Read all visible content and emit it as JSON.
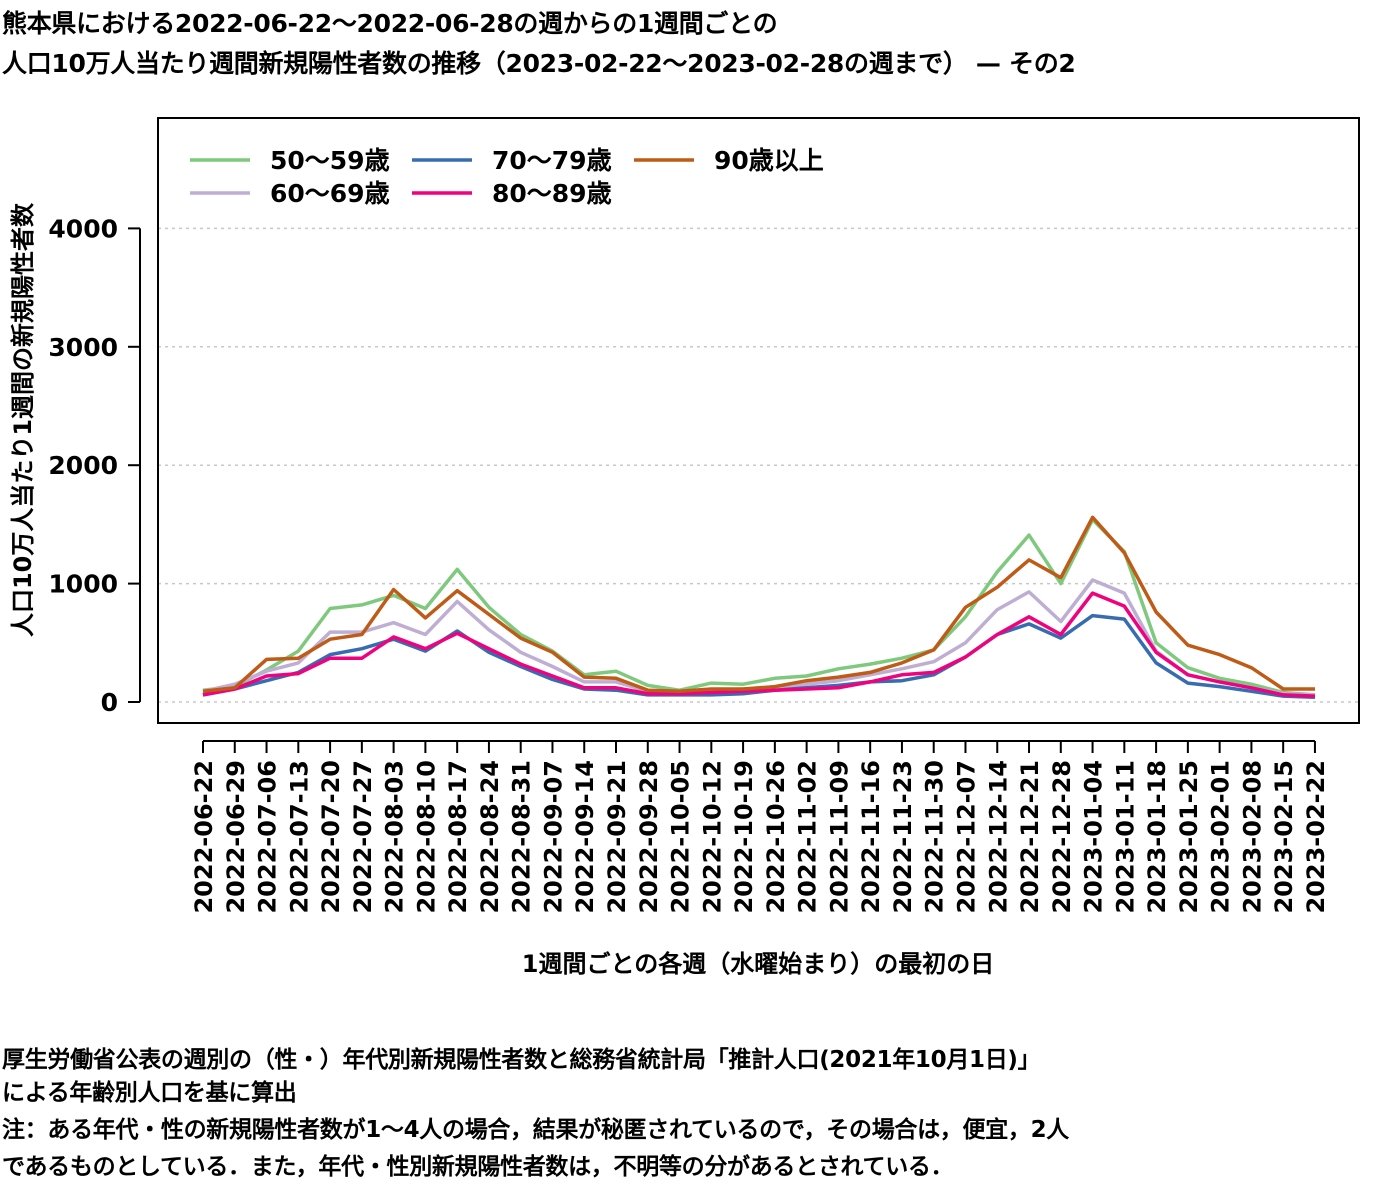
{
  "title": {
    "line1": "熊本県における2022-06-22〜2022-06-28の週からの1週間ごとの",
    "line2": "人口10万人当たり週間新規陽性者数の推移（2023-02-22〜2023-02-28の週まで） — その2"
  },
  "notes": {
    "line1": "厚生労働省公表の週別の（性・）年代別新規陽性者数と総務省統計局「推計人口(2021年10月1日)」",
    "line2": "による年齢別人口を基に算出",
    "line3": "注：ある年代・性の新規陽性者数が1〜4人の場合，結果が秘匿されているので，その場合は，便宜，2人",
    "line4": "であるものとしている．また，年代・性別新規陽性者数は，不明等の分があるとされている．"
  },
  "chart_data": {
    "type": "line",
    "xlabel": "1週間ごとの各週（水曜始まり）の最初の日",
    "ylabel": "人口10万人当たり1週間の新規陽性者数",
    "ylim": [
      0,
      4900
    ],
    "yticks": [
      0,
      1000,
      2000,
      3000,
      4000
    ],
    "grid": "horizontal dotted",
    "legend_position": "top-left",
    "categories": [
      "2022-06-22",
      "2022-06-29",
      "2022-07-06",
      "2022-07-13",
      "2022-07-20",
      "2022-07-27",
      "2022-08-03",
      "2022-08-10",
      "2022-08-17",
      "2022-08-24",
      "2022-08-31",
      "2022-09-07",
      "2022-09-14",
      "2022-09-21",
      "2022-09-28",
      "2022-10-05",
      "2022-10-12",
      "2022-10-19",
      "2022-10-26",
      "2022-11-02",
      "2022-11-09",
      "2022-11-16",
      "2022-11-23",
      "2022-11-30",
      "2022-12-07",
      "2022-12-14",
      "2022-12-21",
      "2022-12-28",
      "2023-01-04",
      "2023-01-11",
      "2023-01-18",
      "2023-01-25",
      "2023-02-01",
      "2023-02-08",
      "2023-02-15",
      "2023-02-22"
    ],
    "series": [
      {
        "name": "50〜59歳",
        "color": "#7fc97f",
        "values": [
          100,
          130,
          270,
          430,
          790,
          820,
          900,
          790,
          1120,
          800,
          570,
          430,
          230,
          260,
          140,
          100,
          160,
          150,
          200,
          220,
          280,
          320,
          370,
          440,
          720,
          1100,
          1410,
          1000,
          1540,
          1270,
          500,
          290,
          200,
          150,
          80,
          60
        ]
      },
      {
        "name": "60〜69歳",
        "color": "#beaed4",
        "values": [
          90,
          150,
          260,
          330,
          590,
          590,
          670,
          570,
          850,
          610,
          420,
          300,
          170,
          170,
          90,
          80,
          100,
          110,
          120,
          150,
          180,
          230,
          280,
          340,
          500,
          780,
          930,
          680,
          1030,
          920,
          430,
          230,
          170,
          120,
          70,
          60
        ]
      },
      {
        "name": "70〜79歳",
        "color": "#386cb0",
        "values": [
          60,
          110,
          180,
          250,
          400,
          450,
          530,
          430,
          600,
          420,
          300,
          190,
          110,
          100,
          60,
          60,
          60,
          70,
          100,
          120,
          140,
          170,
          180,
          230,
          380,
          570,
          660,
          540,
          730,
          700,
          330,
          160,
          130,
          90,
          50,
          40
        ]
      },
      {
        "name": "80〜89歳",
        "color": "#f0027f",
        "values": [
          60,
          110,
          220,
          240,
          370,
          370,
          550,
          450,
          580,
          450,
          320,
          220,
          120,
          120,
          70,
          70,
          80,
          90,
          100,
          110,
          120,
          170,
          230,
          250,
          380,
          570,
          720,
          570,
          920,
          810,
          420,
          230,
          170,
          120,
          60,
          50
        ]
      },
      {
        "name": "90歳以上",
        "color": "#bf5b17",
        "values": [
          90,
          120,
          360,
          370,
          530,
          570,
          950,
          710,
          940,
          740,
          540,
          420,
          210,
          200,
          100,
          90,
          110,
          110,
          130,
          180,
          210,
          250,
          330,
          440,
          800,
          970,
          1200,
          1050,
          1560,
          1260,
          760,
          480,
          400,
          290,
          110,
          110
        ]
      }
    ]
  }
}
